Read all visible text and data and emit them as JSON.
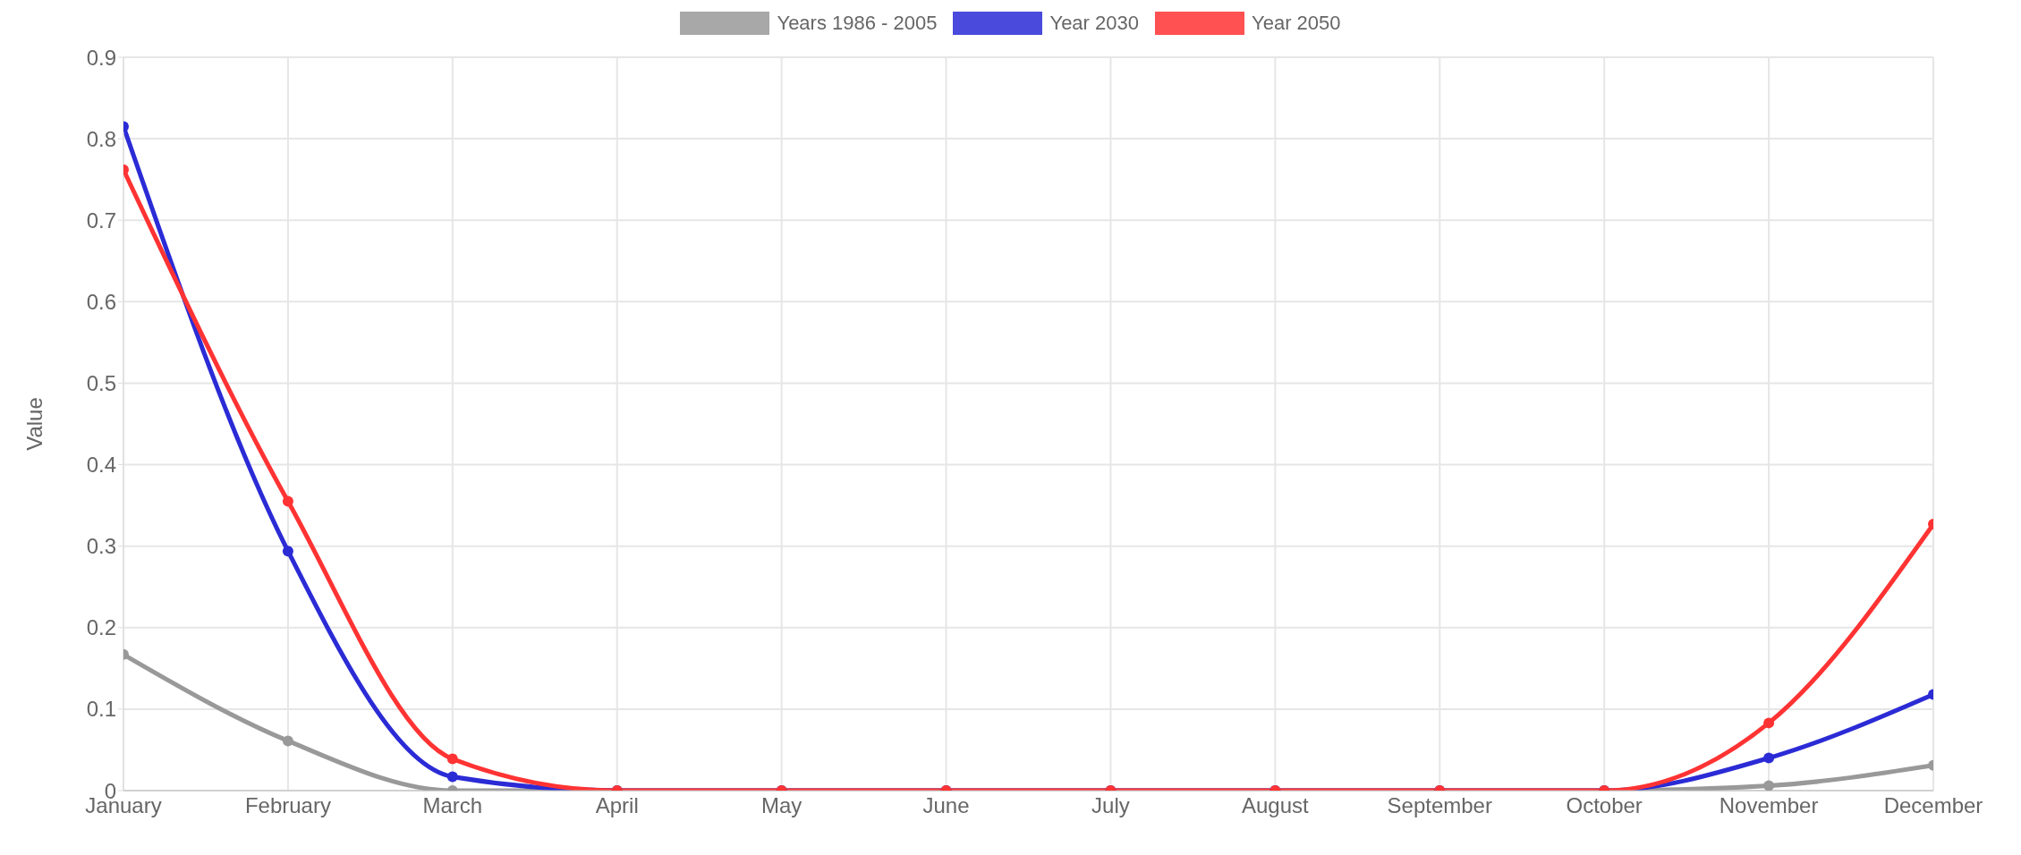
{
  "chart_data": {
    "type": "line",
    "categories": [
      "January",
      "February",
      "March",
      "April",
      "May",
      "June",
      "July",
      "August",
      "September",
      "October",
      "November",
      "December"
    ],
    "series": [
      {
        "name": "Years 1986 - 2005",
        "color": "#999999",
        "values": [
          0.167,
          0.061,
          0,
          0,
          0,
          0,
          0,
          0,
          0,
          0,
          0.006,
          0.031
        ]
      },
      {
        "name": "Year 2030",
        "color": "#2b2bd6",
        "values": [
          0.815,
          0.294,
          0.017,
          0,
          0,
          0,
          0,
          0,
          0,
          0,
          0.04,
          0.118
        ]
      },
      {
        "name": "Year 2050",
        "color": "#ff3333",
        "values": [
          0.762,
          0.355,
          0.039,
          0,
          0,
          0,
          0,
          0,
          0,
          0,
          0.083,
          0.327
        ]
      }
    ],
    "ylabel": "Value",
    "ylim": [
      0,
      0.9
    ],
    "yticks": [
      0,
      0.1,
      0.2,
      0.3,
      0.4,
      0.5,
      0.6,
      0.7,
      0.8,
      0.9
    ],
    "grid": true,
    "legend": "top",
    "marker": "circle",
    "line_style": "solid"
  }
}
